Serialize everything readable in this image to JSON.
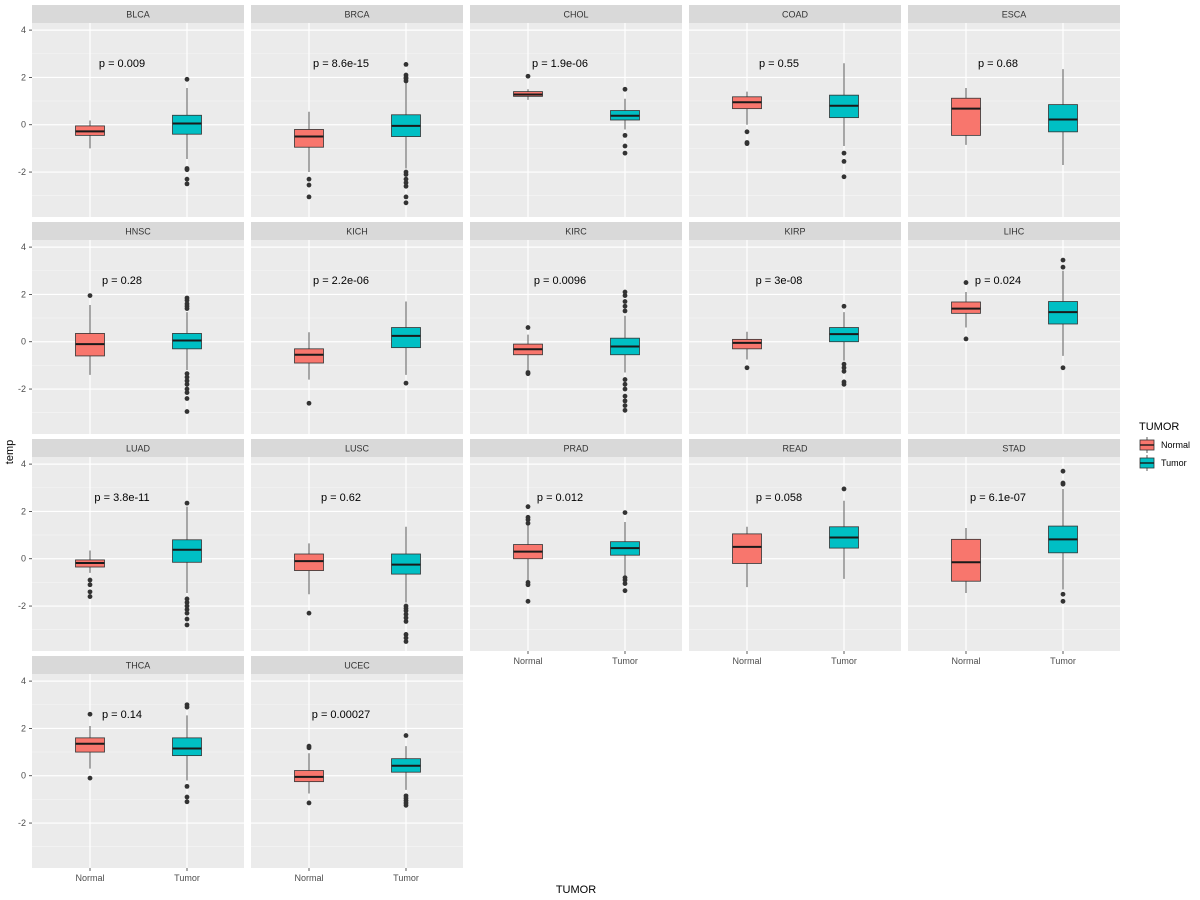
{
  "chart_data": {
    "type": "boxplot",
    "xlabel": "TUMOR",
    "ylabel": "temp",
    "ylim": [
      -3.9,
      4.3
    ],
    "yticks": [
      -2,
      0,
      2,
      4
    ],
    "categories": [
      "Normal",
      "Tumor"
    ],
    "legend": {
      "title": "TUMOR",
      "entries": [
        {
          "label": "Normal",
          "color": "#F8766D"
        },
        {
          "label": "Tumor",
          "color": "#00BFC4"
        }
      ],
      "position": "right"
    },
    "panels": [
      {
        "name": "BLCA",
        "p": "p = 0.009",
        "normal": {
          "min": -1.0,
          "q1": -0.45,
          "median": -0.28,
          "q3": -0.05,
          "max": 0.18,
          "outliers": []
        },
        "tumor": {
          "min": -1.45,
          "q1": -0.4,
          "median": 0.05,
          "q3": 0.4,
          "max": 1.55,
          "outliers": [
            1.92,
            -1.85,
            -1.9,
            -2.3,
            -2.5
          ]
        }
      },
      {
        "name": "BRCA",
        "p": "p = 8.6e-15",
        "normal": {
          "min": -2.0,
          "q1": -0.95,
          "median": -0.5,
          "q3": -0.2,
          "max": 0.55,
          "outliers": [
            -2.3,
            -2.55,
            -3.05
          ]
        },
        "tumor": {
          "min": -1.85,
          "q1": -0.5,
          "median": -0.05,
          "q3": 0.42,
          "max": 1.8,
          "outliers": [
            2.55,
            2.1,
            2.0,
            1.95,
            1.85,
            -2.0,
            -2.1,
            -2.3,
            -2.45,
            -2.6,
            -3.05,
            -3.3
          ]
        }
      },
      {
        "name": "CHOL",
        "p": "p = 1.9e-06",
        "normal": {
          "min": 1.05,
          "q1": 1.2,
          "median": 1.28,
          "q3": 1.4,
          "max": 1.5,
          "outliers": [
            2.05
          ]
        },
        "tumor": {
          "min": -0.2,
          "q1": 0.2,
          "median": 0.38,
          "q3": 0.6,
          "max": 1.1,
          "outliers": [
            1.5,
            -0.45,
            -0.9,
            -1.2
          ]
        }
      },
      {
        "name": "COAD",
        "p": "p = 0.55",
        "normal": {
          "min": 0.0,
          "q1": 0.68,
          "median": 0.95,
          "q3": 1.18,
          "max": 1.4,
          "outliers": [
            -0.3,
            -0.75,
            -0.8
          ]
        },
        "tumor": {
          "min": -0.9,
          "q1": 0.3,
          "median": 0.8,
          "q3": 1.25,
          "max": 2.6,
          "outliers": [
            -1.2,
            -1.55,
            -2.2
          ]
        }
      },
      {
        "name": "ESCA",
        "p": "p = 0.68",
        "normal": {
          "min": -0.85,
          "q1": -0.45,
          "median": 0.68,
          "q3": 1.12,
          "max": 1.55,
          "outliers": []
        },
        "tumor": {
          "min": -1.7,
          "q1": -0.3,
          "median": 0.22,
          "q3": 0.85,
          "max": 2.35,
          "outliers": []
        }
      },
      {
        "name": "HNSC",
        "p": "p = 0.28",
        "normal": {
          "min": -1.4,
          "q1": -0.6,
          "median": -0.1,
          "q3": 0.35,
          "max": 1.55,
          "outliers": [
            1.95
          ]
        },
        "tumor": {
          "min": -1.2,
          "q1": -0.3,
          "median": 0.05,
          "q3": 0.35,
          "max": 1.25,
          "outliers": [
            1.85,
            1.75,
            1.6,
            1.5,
            1.4,
            -1.35,
            -1.5,
            -1.65,
            -1.8,
            -2.0,
            -2.15,
            -2.4,
            -2.95
          ]
        }
      },
      {
        "name": "KICH",
        "p": "p = 2.2e-06",
        "normal": {
          "min": -1.6,
          "q1": -0.9,
          "median": -0.55,
          "q3": -0.3,
          "max": 0.4,
          "outliers": [
            -2.6
          ]
        },
        "tumor": {
          "min": -1.4,
          "q1": -0.25,
          "median": 0.25,
          "q3": 0.6,
          "max": 1.7,
          "outliers": [
            -1.75
          ]
        }
      },
      {
        "name": "KIRC",
        "p": "p = 0.0096",
        "normal": {
          "min": -1.2,
          "q1": -0.55,
          "median": -0.32,
          "q3": -0.1,
          "max": 0.3,
          "outliers": [
            0.6,
            -1.3,
            -1.35
          ]
        },
        "tumor": {
          "min": -1.3,
          "q1": -0.55,
          "median": -0.2,
          "q3": 0.15,
          "max": 1.1,
          "outliers": [
            2.1,
            1.95,
            1.7,
            1.5,
            1.3,
            -1.6,
            -1.8,
            -2.0,
            -2.3,
            -2.5,
            -2.7,
            -2.9
          ]
        }
      },
      {
        "name": "KIRP",
        "p": "p = 3e-08",
        "normal": {
          "min": -0.75,
          "q1": -0.3,
          "median": -0.05,
          "q3": 0.1,
          "max": 0.42,
          "outliers": [
            -1.1
          ]
        },
        "tumor": {
          "min": -0.8,
          "q1": 0.0,
          "median": 0.32,
          "q3": 0.6,
          "max": 1.25,
          "outliers": [
            1.5,
            -0.95,
            -1.1,
            -1.25,
            -1.7,
            -1.8
          ]
        }
      },
      {
        "name": "LIHC",
        "p": "p = 0.024",
        "normal": {
          "min": 0.6,
          "q1": 1.2,
          "median": 1.4,
          "q3": 1.68,
          "max": 2.1,
          "outliers": [
            2.5,
            0.12
          ]
        },
        "tumor": {
          "min": -0.6,
          "q1": 0.75,
          "median": 1.25,
          "q3": 1.7,
          "max": 3.0,
          "outliers": [
            3.45,
            3.15,
            -1.1
          ]
        }
      },
      {
        "name": "LUAD",
        "p": "p = 3.8e-11",
        "normal": {
          "min": -0.6,
          "q1": -0.35,
          "median": -0.18,
          "q3": -0.05,
          "max": 0.35,
          "outliers": [
            -0.9,
            -1.1,
            -1.4,
            -1.6
          ]
        },
        "tumor": {
          "min": -1.45,
          "q1": -0.15,
          "median": 0.38,
          "q3": 0.8,
          "max": 2.2,
          "outliers": [
            2.35,
            -1.7,
            -1.85,
            -2.0,
            -2.15,
            -2.3,
            -2.55,
            -2.8
          ]
        }
      },
      {
        "name": "LUSC",
        "p": "p = 0.62",
        "normal": {
          "min": -1.5,
          "q1": -0.5,
          "median": -0.1,
          "q3": 0.2,
          "max": 0.65,
          "outliers": [
            -2.3
          ]
        },
        "tumor": {
          "min": -1.85,
          "q1": -0.65,
          "median": -0.25,
          "q3": 0.2,
          "max": 1.35,
          "outliers": [
            -2.0,
            -2.1,
            -2.2,
            -2.35,
            -2.5,
            -2.65,
            -3.2,
            -3.35,
            -3.5
          ]
        }
      },
      {
        "name": "PRAD",
        "p": "p = 0.012",
        "normal": {
          "min": -0.9,
          "q1": 0.0,
          "median": 0.3,
          "q3": 0.6,
          "max": 1.4,
          "outliers": [
            2.2,
            1.75,
            1.65,
            1.5,
            -1.0,
            -1.1,
            -1.8
          ]
        },
        "tumor": {
          "min": -0.7,
          "q1": 0.15,
          "median": 0.45,
          "q3": 0.72,
          "max": 1.55,
          "outliers": [
            1.95,
            -0.8,
            -0.9,
            -1.05,
            -1.35
          ]
        }
      },
      {
        "name": "READ",
        "p": "p = 0.058",
        "normal": {
          "min": -1.2,
          "q1": -0.2,
          "median": 0.5,
          "q3": 1.05,
          "max": 1.35,
          "outliers": []
        },
        "tumor": {
          "min": -0.85,
          "q1": 0.45,
          "median": 0.9,
          "q3": 1.35,
          "max": 2.45,
          "outliers": [
            2.95
          ]
        }
      },
      {
        "name": "STAD",
        "p": "p = 6.1e-07",
        "normal": {
          "min": -1.45,
          "q1": -0.95,
          "median": -0.15,
          "q3": 0.82,
          "max": 1.3,
          "outliers": []
        },
        "tumor": {
          "min": -1.3,
          "q1": 0.25,
          "median": 0.82,
          "q3": 1.38,
          "max": 2.95,
          "outliers": [
            3.7,
            3.2,
            3.15,
            -1.5,
            -1.8
          ]
        }
      },
      {
        "name": "THCA",
        "p": "p = 0.14",
        "normal": {
          "min": 0.3,
          "q1": 1.0,
          "median": 1.35,
          "q3": 1.6,
          "max": 2.1,
          "outliers": [
            2.6,
            -0.1
          ]
        },
        "tumor": {
          "min": -0.2,
          "q1": 0.85,
          "median": 1.15,
          "q3": 1.6,
          "max": 2.55,
          "outliers": [
            3.0,
            2.9,
            -0.45,
            -0.9,
            -1.1
          ]
        }
      },
      {
        "name": "UCEC",
        "p": "p = 0.00027",
        "normal": {
          "min": -0.75,
          "q1": -0.25,
          "median": -0.05,
          "q3": 0.22,
          "max": 0.95,
          "outliers": [
            1.25,
            1.18,
            -1.15
          ]
        },
        "tumor": {
          "min": -0.6,
          "q1": 0.15,
          "median": 0.42,
          "q3": 0.72,
          "max": 1.25,
          "outliers": [
            1.7,
            -0.85,
            -0.95,
            -1.05,
            -1.15,
            -1.25
          ]
        }
      }
    ]
  }
}
